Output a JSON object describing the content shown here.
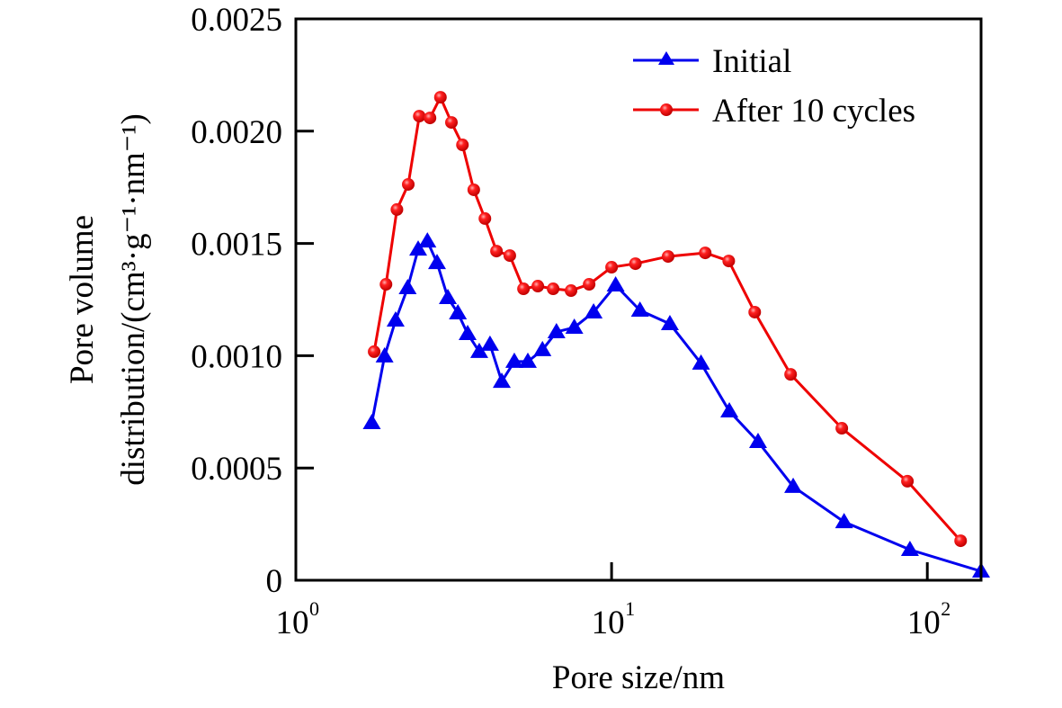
{
  "chart_data": {
    "type": "line",
    "title": "",
    "xlabel": "Pore size/nm",
    "ylabel_line1": "Pore volume",
    "ylabel_line2": "distribution/(cm³·g⁻¹·nm⁻¹)",
    "xscale": "log",
    "xlim": [
      1,
      148
    ],
    "ylim": [
      0,
      0.0025
    ],
    "grid": false,
    "legend_position": "top-right",
    "x_ticks": [
      {
        "value": 1,
        "base": "10",
        "exp": "0"
      },
      {
        "value": 10,
        "base": "10",
        "exp": "1"
      },
      {
        "value": 100,
        "base": "10",
        "exp": "2"
      }
    ],
    "y_ticks": [
      {
        "value": 0,
        "label": "0"
      },
      {
        "value": 0.0005,
        "label": "0.0005"
      },
      {
        "value": 0.001,
        "label": "0.0010"
      },
      {
        "value": 0.0015,
        "label": "0.0015"
      },
      {
        "value": 0.002,
        "label": "0.0020"
      },
      {
        "value": 0.0025,
        "label": "0.0025"
      }
    ],
    "series": [
      {
        "name": "Initial",
        "color": "#0000ee",
        "marker": "triangle",
        "x": [
          1.74,
          1.91,
          2.07,
          2.26,
          2.44,
          2.61,
          2.8,
          3.03,
          3.26,
          3.5,
          3.81,
          4.12,
          4.49,
          4.92,
          5.43,
          6.04,
          6.69,
          7.62,
          8.77,
          10.3,
          12.3,
          15.3,
          19.2,
          23.6,
          29.1,
          37.6,
          54.5,
          88.1,
          148
        ],
        "y": [
          0.000701,
          0.000998,
          0.001158,
          0.001302,
          0.001474,
          0.00151,
          0.001414,
          0.001258,
          0.00119,
          0.001098,
          0.001018,
          0.00105,
          0.000885,
          0.000974,
          0.000974,
          0.001026,
          0.001106,
          0.001126,
          0.001194,
          0.001314,
          0.001202,
          0.001142,
          0.000966,
          0.000753,
          0.000617,
          0.000417,
          0.00026,
          0.000136,
          4e-05
        ]
      },
      {
        "name": "After 10 cycles",
        "color": "#ee0000",
        "marker": "circle",
        "x": [
          1.77,
          1.93,
          2.09,
          2.27,
          2.46,
          2.66,
          2.87,
          3.11,
          3.37,
          3.66,
          3.97,
          4.32,
          4.76,
          5.26,
          5.84,
          6.53,
          7.44,
          8.49,
          10.0,
          11.9,
          15.1,
          19.8,
          23.5,
          28.4,
          36.9,
          53.6,
          86.5,
          127.5
        ],
        "y": [
          0.001018,
          0.001318,
          0.001651,
          0.001763,
          0.002067,
          0.002059,
          0.002151,
          0.002039,
          0.001939,
          0.001739,
          0.001611,
          0.001466,
          0.001446,
          0.001298,
          0.00131,
          0.001298,
          0.00129,
          0.001318,
          0.001394,
          0.00141,
          0.001442,
          0.001458,
          0.001422,
          0.001194,
          0.000917,
          0.000677,
          0.000441,
          0.000176
        ]
      }
    ]
  }
}
